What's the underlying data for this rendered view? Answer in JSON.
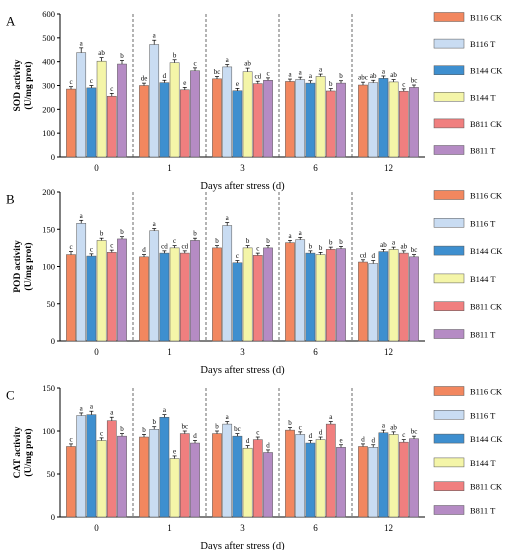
{
  "colors": {
    "B116 CK": "#f2875f",
    "B116 T": "#c9dcf2",
    "B144 CK": "#3e8fcf",
    "B144 T": "#f4f5a8",
    "B811 CK": "#f07f7f",
    "B811 T": "#b58bc4"
  },
  "chart_data": [
    {
      "type": "bar",
      "panel": "A",
      "ylabel": "SOD activity",
      "ylabel_unit": "(U/mg prot)",
      "xlabel": "Days after stress (d)",
      "ylim": [
        0,
        600
      ],
      "yticks": [
        0,
        100,
        200,
        300,
        400,
        500,
        600
      ],
      "categories": [
        "0",
        "1",
        "3",
        "6",
        "12"
      ],
      "legend_position": "right",
      "series": [
        {
          "name": "B116 CK",
          "values": [
            285,
            300,
            328,
            317,
            302
          ],
          "errors": [
            10,
            10,
            10,
            10,
            12
          ],
          "letters": [
            "c",
            "de",
            "bc",
            "a",
            "abc"
          ]
        },
        {
          "name": "B116 T",
          "values": [
            438,
            472,
            378,
            325,
            312
          ],
          "errors": [
            20,
            18,
            10,
            10,
            10
          ],
          "letters": [
            "a",
            "a",
            "a",
            "a",
            "ab"
          ]
        },
        {
          "name": "B144 CK",
          "values": [
            290,
            312,
            278,
            310,
            330
          ],
          "errors": [
            10,
            10,
            10,
            10,
            10
          ],
          "letters": [
            "c",
            "d",
            "e",
            "a",
            "a"
          ]
        },
        {
          "name": "B144 T",
          "values": [
            402,
            396,
            358,
            338,
            315
          ],
          "errors": [
            15,
            12,
            15,
            10,
            10
          ],
          "letters": [
            "ab",
            "b",
            "ab",
            "a",
            "ab"
          ]
        },
        {
          "name": "B811 CK",
          "values": [
            255,
            282,
            308,
            277,
            276
          ],
          "errors": [
            12,
            10,
            10,
            10,
            10
          ],
          "letters": [
            "c",
            "e",
            "cd",
            "b",
            "c"
          ]
        },
        {
          "name": "B811 T",
          "values": [
            390,
            362,
            322,
            310,
            292
          ],
          "errors": [
            15,
            12,
            10,
            10,
            10
          ],
          "letters": [
            "b",
            "c",
            "c",
            "b",
            "bc"
          ]
        }
      ]
    },
    {
      "type": "bar",
      "panel": "B",
      "ylabel": "POD activity",
      "ylabel_unit": "(U/mg prot)",
      "xlabel": "Days after stress (d)",
      "ylim": [
        0,
        200
      ],
      "yticks": [
        0,
        50,
        100,
        150,
        200
      ],
      "categories": [
        "0",
        "1",
        "3",
        "6",
        "12"
      ],
      "legend_position": "right",
      "series": [
        {
          "name": "B116 CK",
          "values": [
            116,
            113,
            125,
            132,
            106
          ],
          "errors": [
            4,
            3,
            3,
            3,
            3
          ],
          "letters": [
            "c",
            "d",
            "b",
            "a",
            "cd"
          ]
        },
        {
          "name": "B116 T",
          "values": [
            158,
            148,
            155,
            136,
            104
          ],
          "errors": [
            4,
            3,
            4,
            3,
            4
          ],
          "letters": [
            "a",
            "a",
            "a",
            "a",
            "d"
          ]
        },
        {
          "name": "B144 CK",
          "values": [
            114,
            118,
            105,
            118,
            120
          ],
          "errors": [
            3,
            3,
            3,
            3,
            3
          ],
          "letters": [
            "c",
            "cd",
            "c",
            "b",
            "ab"
          ]
        },
        {
          "name": "B144 T",
          "values": [
            135,
            125,
            125,
            116,
            123
          ],
          "errors": [
            3,
            3,
            3,
            3,
            3
          ],
          "letters": [
            "b",
            "c",
            "b",
            "b",
            "a"
          ]
        },
        {
          "name": "B811 CK",
          "values": [
            119,
            118,
            115,
            123,
            118
          ],
          "errors": [
            3,
            3,
            3,
            3,
            3
          ],
          "letters": [
            "c",
            "cd",
            "c",
            "b",
            "ab"
          ]
        },
        {
          "name": "B811 T",
          "values": [
            137,
            135,
            125,
            124,
            113
          ],
          "errors": [
            3,
            3,
            3,
            3,
            3
          ],
          "letters": [
            "b",
            "b",
            "b",
            "b",
            "bc"
          ]
        }
      ]
    },
    {
      "type": "bar",
      "panel": "C",
      "ylabel": "CAT activity",
      "ylabel_unit": "(U/mg prot)",
      "xlabel": "Days after stress (d)",
      "ylim": [
        0,
        150
      ],
      "yticks": [
        0,
        50,
        100,
        150
      ],
      "categories": [
        "0",
        "1",
        "3",
        "6",
        "12"
      ],
      "legend_position": "right",
      "series": [
        {
          "name": "B116 CK",
          "values": [
            82,
            93,
            97,
            101,
            82
          ],
          "errors": [
            3,
            3,
            3,
            3,
            3
          ],
          "letters": [
            "c",
            "b",
            "b",
            "b",
            "d"
          ]
        },
        {
          "name": "B116 T",
          "values": [
            118,
            102,
            108,
            96,
            81
          ],
          "errors": [
            3,
            3,
            3,
            3,
            3
          ],
          "letters": [
            "a",
            "b",
            "a",
            "c",
            "d"
          ]
        },
        {
          "name": "B144 CK",
          "values": [
            119,
            116,
            94,
            86,
            98
          ],
          "errors": [
            4,
            3,
            3,
            3,
            3
          ],
          "letters": [
            "a",
            "a",
            "bc",
            "d",
            "a"
          ]
        },
        {
          "name": "B144 T",
          "values": [
            89,
            68,
            80,
            90,
            96
          ],
          "errors": [
            3,
            3,
            3,
            3,
            3
          ],
          "letters": [
            "c",
            "e",
            "d",
            "d",
            "ab"
          ]
        },
        {
          "name": "B811 CK",
          "values": [
            112,
            97,
            90,
            108,
            87
          ],
          "errors": [
            4,
            3,
            3,
            3,
            3
          ],
          "letters": [
            "a",
            "bc",
            "c",
            "a",
            "c"
          ]
        },
        {
          "name": "B811 T",
          "values": [
            94,
            86,
            75,
            81,
            91
          ],
          "errors": [
            3,
            3,
            3,
            3,
            3
          ],
          "letters": [
            "b",
            "d",
            "d",
            "e",
            "bc"
          ]
        }
      ]
    }
  ]
}
